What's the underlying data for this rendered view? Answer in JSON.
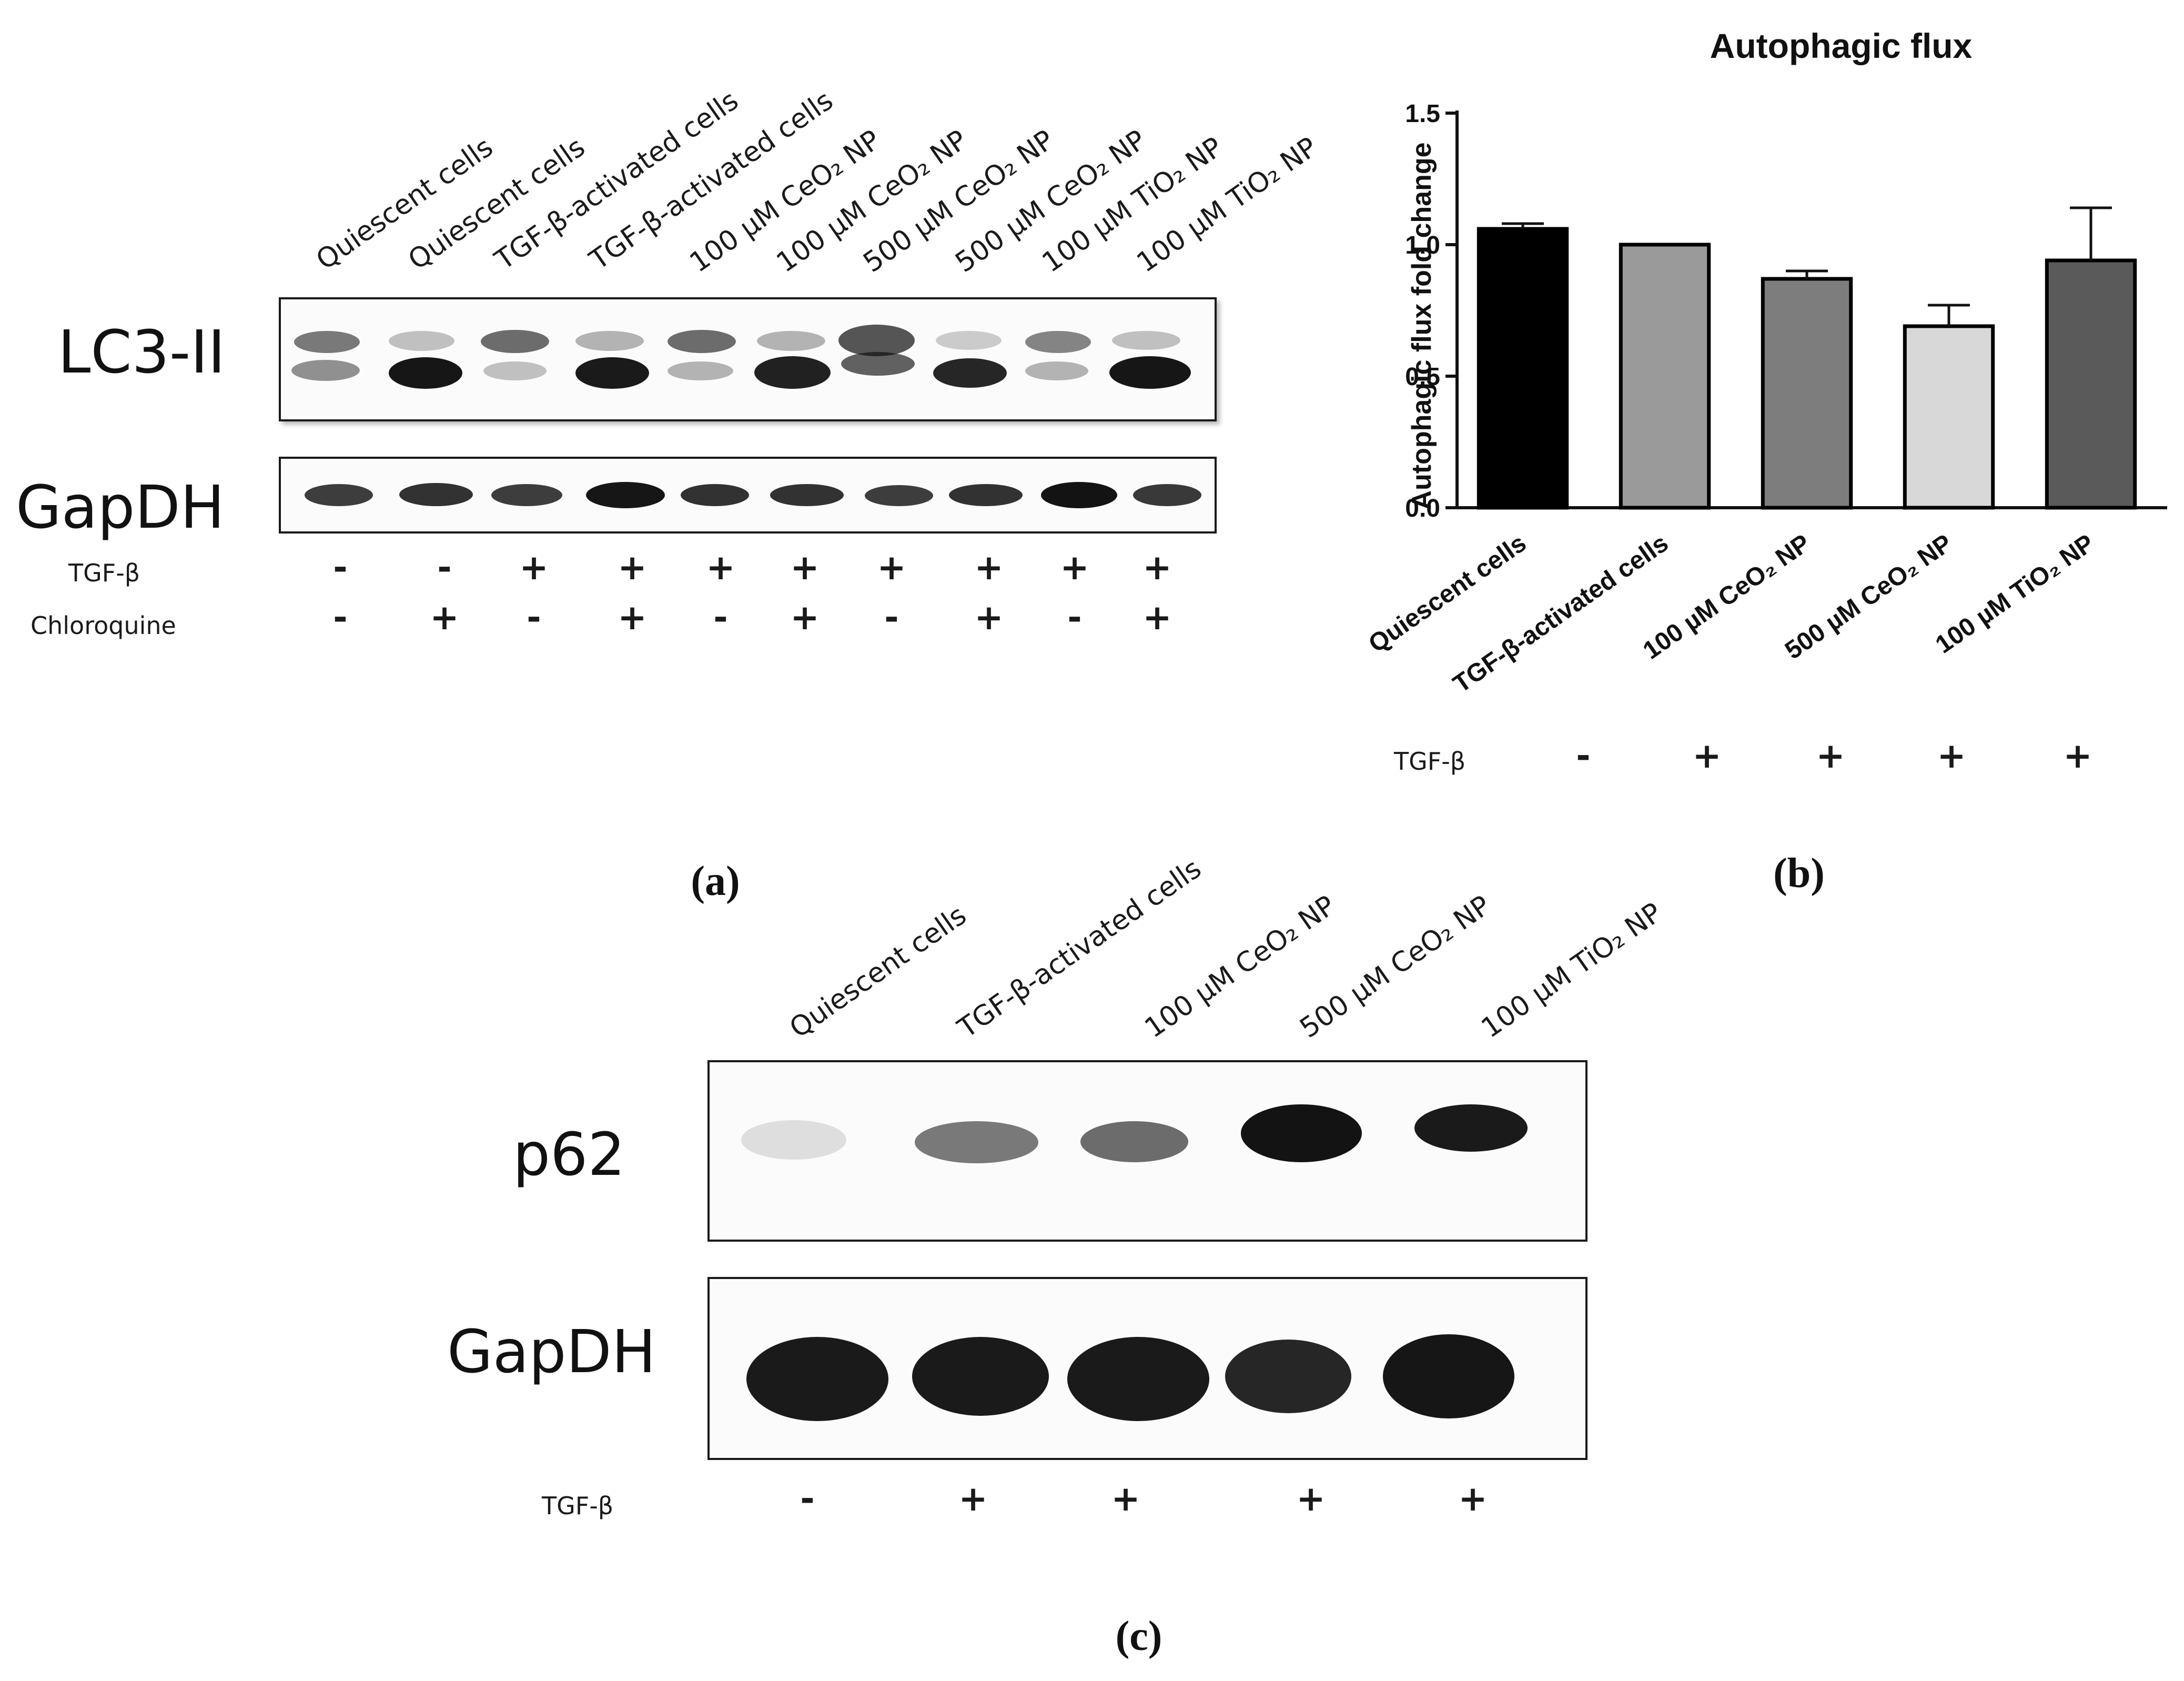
{
  "panel_a": {
    "lane_labels": [
      "Quiescent cells",
      "Quiescent cells",
      "TGF-β-activated cells",
      "TGF-β-activated cells",
      "100 µM CeO₂ NP",
      "100 µM CeO₂ NP",
      "500 µM CeO₂ NP",
      "500 µM CeO₂ NP",
      "100 µM TiO₂ NP",
      "100 µM TiO₂ NP"
    ],
    "blot1_label": "LC3-II",
    "blot2_label": "GapDH",
    "row1_label": "TGF-β",
    "row1_signs": [
      "-",
      "-",
      "+",
      "+",
      "+",
      "+",
      "+",
      "+",
      "+",
      "+"
    ],
    "row2_label": "Chloroquine",
    "row2_signs": [
      "-",
      "+",
      "-",
      "+",
      "-",
      "+",
      "-",
      "+",
      "-",
      "+"
    ],
    "panel_letter": "(a)"
  },
  "panel_b": {
    "tgf_label": "TGF-β",
    "tgf_signs": [
      "-",
      "+",
      "+",
      "+",
      "+"
    ],
    "panel_letter": "(b)"
  },
  "chart_data": {
    "type": "bar",
    "title": "Autophagic flux",
    "xlabel": "",
    "ylabel": "Autophagic flux fold change",
    "categories": [
      "Quiescent cells",
      "TGF-β-activated cells",
      "100 µM CeO₂ NP",
      "500 µM CeO₂ NP",
      "100 µM TiO₂ NP"
    ],
    "values": [
      1.06,
      1.0,
      0.87,
      0.69,
      0.94
    ],
    "error_upper": [
      0.02,
      0.0,
      0.03,
      0.08,
      0.2
    ],
    "ylim": [
      0,
      1.5
    ],
    "yticks": [
      "0.0",
      "0.5",
      "1.0",
      "1.5"
    ],
    "bar_colors": [
      "#000000",
      "#9a9a9a",
      "#7d7d7d",
      "#d8d8d8",
      "#5a5a5a"
    ],
    "grid": false,
    "legend": "none"
  },
  "panel_c": {
    "lane_labels": [
      "Quiescent cells",
      "TGF-β-activated cells",
      "100 µM CeO₂ NP",
      "500 µM CeO₂ NP",
      "100 µM TiO₂ NP"
    ],
    "blot1_label": "p62",
    "blot2_label": "GapDH",
    "tgf_label": "TGF-β",
    "tgf_signs": [
      "-",
      "+",
      "+",
      "+",
      "+"
    ],
    "panel_letter": "(c)"
  }
}
